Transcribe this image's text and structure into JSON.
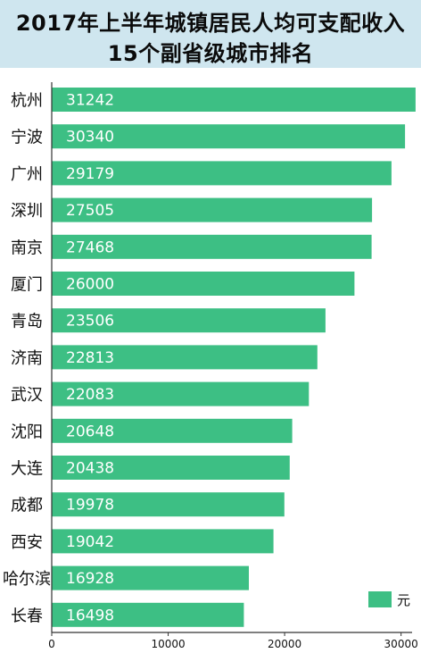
{
  "header": {
    "title_line1": "2017年上半年城镇居民人均可支配收入",
    "title_line2": "15个副省级城市排名"
  },
  "colors": {
    "bar": "#3dbf84",
    "header_bg": "#cfe6ef",
    "axis": "#333333"
  },
  "chart_data": {
    "type": "bar",
    "orientation": "horizontal",
    "categories": [
      "杭州",
      "宁波",
      "广州",
      "深圳",
      "南京",
      "厦门",
      "青岛",
      "济南",
      "武汉",
      "沈阳",
      "大连",
      "成都",
      "西安",
      "哈尔滨",
      "长春"
    ],
    "values": [
      31242,
      30340,
      29179,
      27505,
      27468,
      26000,
      23506,
      22813,
      22083,
      20648,
      20438,
      19978,
      19042,
      16928,
      16498
    ],
    "series": [
      {
        "name": "元",
        "values": [
          31242,
          30340,
          29179,
          27505,
          27468,
          26000,
          23506,
          22813,
          22083,
          20648,
          20438,
          19978,
          19042,
          16928,
          16498
        ]
      }
    ],
    "title": "2017年上半年城镇居民人均可支配收入 15个副省级城市排名",
    "xticks": [
      "0",
      "10000",
      "20000",
      "30000"
    ],
    "xlim": [
      0,
      30000
    ],
    "legend": {
      "label": "元",
      "position": "bottom-right"
    },
    "grid": false,
    "data_labels": true
  }
}
